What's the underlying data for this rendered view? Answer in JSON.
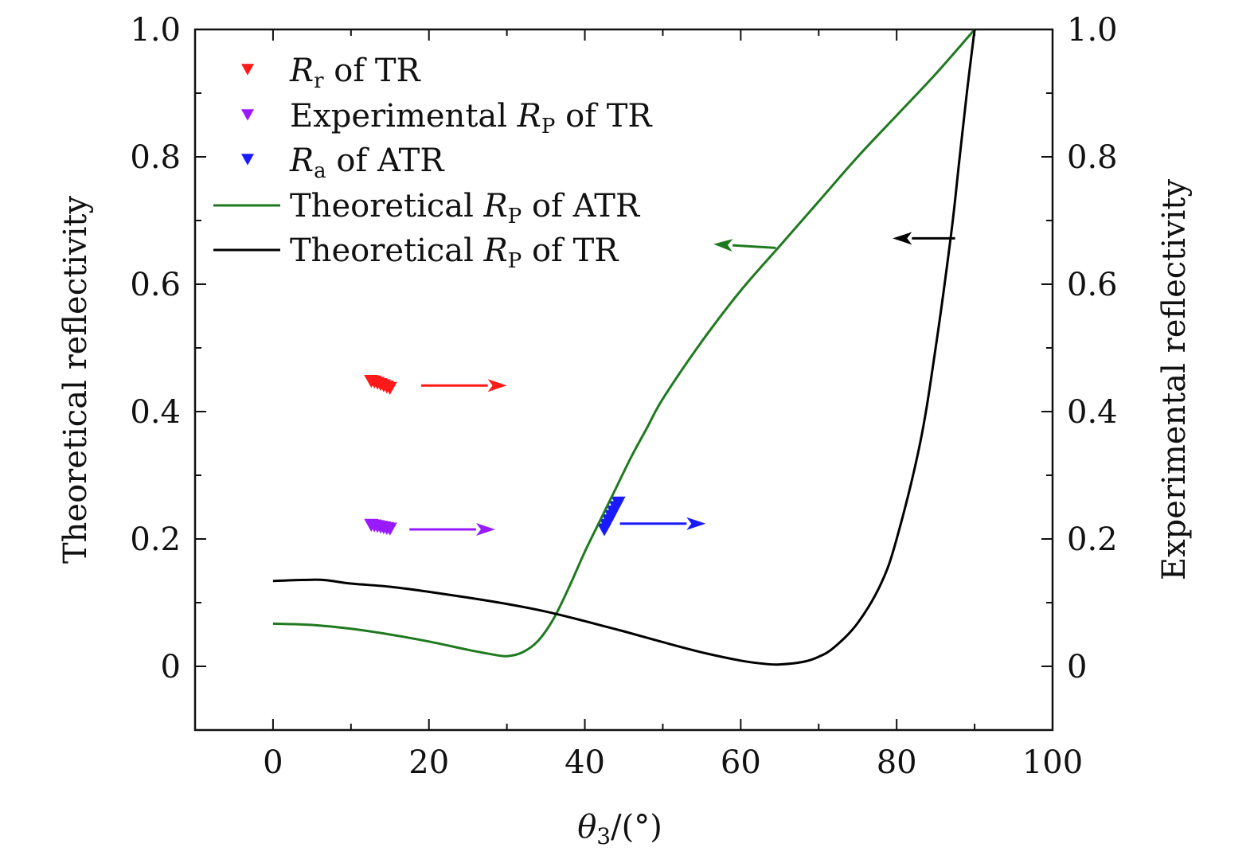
{
  "chart_data": {
    "type": "line",
    "xlabel": "θ3/(°)",
    "ylabel_left": "Theoretical reflectivity",
    "ylabel_right": "Experimental reflectivity",
    "xlim": [
      -10,
      100
    ],
    "ylim": [
      -0.1,
      1.0
    ],
    "x_ticks": [
      0,
      20,
      40,
      60,
      80,
      100
    ],
    "x_tick_labels": [
      "0",
      "20",
      "40",
      "60",
      "80",
      "100"
    ],
    "y_ticks": [
      0,
      0.2,
      0.4,
      0.6,
      0.8,
      1.0
    ],
    "y_tick_labels": [
      "0",
      "0.2",
      "0.4",
      "0.6",
      "0.8",
      "1.0"
    ],
    "legend_position": "top-left",
    "grid": false,
    "series": [
      {
        "name": "Rr of TR",
        "legend": {
          "main": "R",
          "sub": "r",
          "rest": " of TR"
        },
        "kind": "scatter",
        "marker": "down-triangle",
        "color": "#ff1a1a",
        "x": [
          12.6,
          13.0,
          13.4,
          13.8,
          14.2,
          14.6,
          15.0
        ],
        "y": [
          0.448,
          0.447,
          0.445,
          0.443,
          0.441,
          0.439,
          0.437
        ]
      },
      {
        "name": "Experimental RP of TR",
        "legend": {
          "main": "R",
          "sub": "P",
          "rest": " of TR",
          "pre": "Experimental "
        },
        "kind": "scatter",
        "marker": "down-triangle",
        "color": "#9a1aff",
        "x": [
          12.6,
          13.0,
          13.4,
          13.8,
          14.2,
          14.6,
          15.0
        ],
        "y": [
          0.222,
          0.221,
          0.22,
          0.219,
          0.218,
          0.217,
          0.216
        ]
      },
      {
        "name": "Ra of ATR",
        "legend": {
          "main": "R",
          "sub": "a",
          "rest": " of ATR"
        },
        "kind": "scatter",
        "marker": "down-triangle",
        "color": "#1a1aff",
        "x": [
          42.5,
          42.8,
          43.1,
          43.4,
          43.7,
          44.0,
          44.3
        ],
        "y": [
          0.215,
          0.222,
          0.229,
          0.236,
          0.243,
          0.25,
          0.257
        ]
      },
      {
        "name": "Theoretical RP of ATR",
        "legend": {
          "main": "R",
          "sub": "P",
          "rest": " of ATR",
          "pre": "Theoretical "
        },
        "kind": "line",
        "color": "#1f7a1f",
        "x": [
          0,
          5,
          10,
          15,
          20,
          25,
          28,
          30,
          32,
          34,
          36,
          38,
          40,
          42,
          44,
          46,
          48,
          50,
          55,
          60,
          65,
          70,
          75,
          80,
          85,
          90
        ],
        "y": [
          0.067,
          0.065,
          0.059,
          0.05,
          0.039,
          0.026,
          0.019,
          0.016,
          0.022,
          0.04,
          0.075,
          0.125,
          0.18,
          0.23,
          0.28,
          0.33,
          0.375,
          0.42,
          0.51,
          0.59,
          0.66,
          0.73,
          0.8,
          0.865,
          0.93,
          1.0
        ]
      },
      {
        "name": "Theoretical RP of TR",
        "legend": {
          "main": "R",
          "sub": "P",
          "rest": " of TR",
          "pre": "Theoretical "
        },
        "kind": "line",
        "color": "#000000",
        "x": [
          0,
          5,
          7,
          10,
          15,
          20,
          25,
          30,
          35,
          40,
          45,
          50,
          55,
          60,
          63,
          65,
          68,
          70,
          72,
          75,
          78,
          80,
          83,
          85,
          87,
          88,
          89,
          90
        ],
        "y": [
          0.134,
          0.136,
          0.135,
          0.13,
          0.125,
          0.117,
          0.108,
          0.098,
          0.086,
          0.071,
          0.055,
          0.038,
          0.022,
          0.009,
          0.004,
          0.003,
          0.007,
          0.015,
          0.03,
          0.068,
          0.13,
          0.2,
          0.35,
          0.5,
          0.68,
          0.79,
          0.9,
          1.0
        ]
      }
    ],
    "annotations": [
      {
        "type": "arrow",
        "color": "#ff1a1a",
        "from": [
          19,
          0.441
        ],
        "to": [
          30,
          0.441
        ]
      },
      {
        "type": "arrow",
        "color": "#9a1aff",
        "from": [
          17.5,
          0.215
        ],
        "to": [
          28.5,
          0.215
        ]
      },
      {
        "type": "arrow",
        "color": "#1a1aff",
        "from": [
          44.5,
          0.224
        ],
        "to": [
          55.5,
          0.224
        ]
      },
      {
        "type": "arrow",
        "color": "#1f7a1f",
        "from": [
          64.5,
          0.657
        ],
        "to": [
          56.5,
          0.663
        ]
      },
      {
        "type": "arrow",
        "color": "#000000",
        "from": [
          87.5,
          0.672
        ],
        "to": [
          79.5,
          0.672
        ]
      }
    ]
  }
}
